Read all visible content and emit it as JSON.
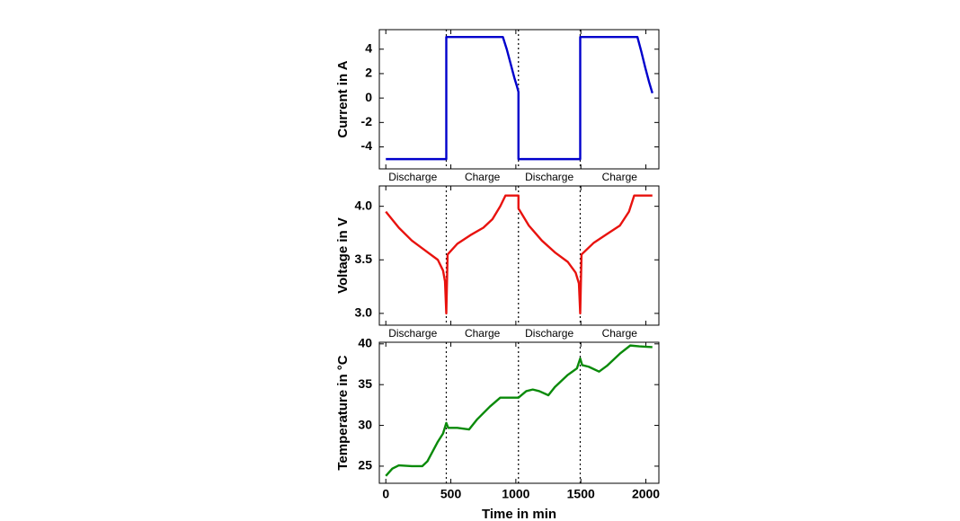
{
  "chart_data": [
    {
      "type": "line",
      "ylabel": "Current in A",
      "x": [
        0,
        465,
        465,
        900,
        930,
        960,
        990,
        1010,
        1020,
        1020,
        1495,
        1495,
        1935,
        1965,
        1995,
        2025,
        2050
      ],
      "series": [
        {
          "color": "#0000cc",
          "values": [
            -5,
            -5,
            5,
            5,
            4.0,
            2.8,
            1.6,
            0.9,
            0.5,
            -5,
            -5,
            5,
            5,
            3.8,
            2.5,
            1.3,
            0.4
          ]
        }
      ],
      "xlim": [
        -50,
        2100
      ],
      "ylim": [
        -5.8,
        5.6
      ],
      "yticks": [
        -4,
        -2,
        0,
        2,
        4
      ],
      "phase_lines": [
        465,
        1020,
        1495
      ],
      "phase_labels": [
        {
          "text": "Discharge",
          "color": "#e8120e"
        },
        {
          "text": "Charge",
          "color": "#0000aa"
        },
        {
          "text": "Discharge",
          "color": "#e8120e"
        },
        {
          "text": "Charge",
          "color": "#0000aa"
        }
      ]
    },
    {
      "type": "line",
      "ylabel": "Voltage in V",
      "x": [
        0,
        100,
        200,
        300,
        400,
        440,
        455,
        465,
        475,
        550,
        650,
        750,
        820,
        880,
        920,
        1020,
        1020,
        1100,
        1200,
        1300,
        1400,
        1460,
        1485,
        1495,
        1505,
        1600,
        1700,
        1800,
        1870,
        1910,
        2050
      ],
      "series": [
        {
          "color": "#e8120e",
          "values": [
            3.95,
            3.8,
            3.68,
            3.59,
            3.5,
            3.4,
            3.3,
            3.0,
            3.55,
            3.65,
            3.73,
            3.8,
            3.88,
            4.0,
            4.1,
            4.1,
            3.98,
            3.82,
            3.68,
            3.57,
            3.48,
            3.38,
            3.28,
            3.0,
            3.55,
            3.66,
            3.74,
            3.82,
            3.95,
            4.1,
            4.1
          ]
        }
      ],
      "xlim": [
        -50,
        2100
      ],
      "ylim": [
        2.89,
        4.19
      ],
      "yticks": [
        {
          "value": 3.0,
          "label": "3.0"
        },
        {
          "value": 3.5,
          "label": "3.5"
        },
        {
          "value": 4.0,
          "label": "4.0"
        }
      ],
      "phase_lines": [
        465,
        1020,
        1495
      ],
      "phase_labels": [
        {
          "text": "Discharge",
          "color": "#e8120e"
        },
        {
          "text": "Charge",
          "color": "#0000aa"
        },
        {
          "text": "Discharge",
          "color": "#e8120e"
        },
        {
          "text": "Charge",
          "color": "#0000aa"
        }
      ]
    },
    {
      "type": "line",
      "ylabel": "Temperature in °C",
      "xlabel": "Time in min",
      "x": [
        0,
        50,
        100,
        200,
        280,
        320,
        400,
        440,
        465,
        480,
        550,
        640,
        700,
        800,
        880,
        1000,
        1020,
        1080,
        1130,
        1180,
        1250,
        1300,
        1400,
        1470,
        1495,
        1510,
        1560,
        1640,
        1700,
        1800,
        1880,
        1950,
        2050
      ],
      "series": [
        {
          "color": "#0a8a0a",
          "values": [
            23.8,
            24.7,
            25.1,
            25.0,
            25.0,
            25.6,
            28.0,
            29.0,
            30.3,
            29.7,
            29.7,
            29.5,
            30.7,
            32.3,
            33.4,
            33.4,
            33.4,
            34.2,
            34.4,
            34.2,
            33.7,
            34.7,
            36.2,
            37.0,
            38.2,
            37.4,
            37.2,
            36.6,
            37.3,
            38.8,
            39.8,
            39.7,
            39.6
          ]
        }
      ],
      "xlim": [
        -50,
        2100
      ],
      "ylim": [
        22.9,
        40.2
      ],
      "yticks": [
        25,
        30,
        35,
        40
      ],
      "xticks": [
        0,
        500,
        1000,
        1500,
        2000
      ],
      "phase_lines": [
        465,
        1020,
        1495
      ]
    }
  ]
}
